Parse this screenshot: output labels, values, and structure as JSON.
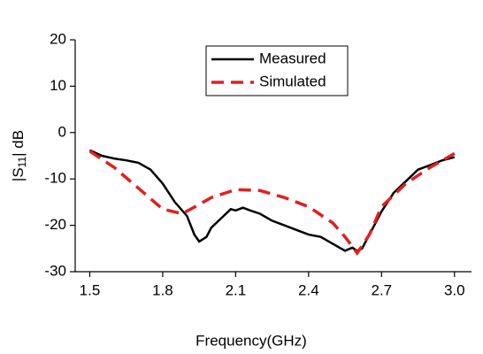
{
  "chart_data": {
    "type": "line",
    "xlabel": "Frequency(GHz)",
    "ylabel": [
      "|S",
      "11",
      "| dB"
    ],
    "xlim": [
      1.44,
      3.07
    ],
    "ylim": [
      -30,
      20
    ],
    "xticks": [
      1.5,
      1.8,
      2.1,
      2.4,
      2.7,
      {
        "value": 3,
        "label": "3.0"
      }
    ],
    "yticks": [
      20,
      10,
      0,
      -10,
      -20,
      -30
    ],
    "legend": "top",
    "series": [
      {
        "name": "Measured",
        "color": "#000000",
        "style": "solid",
        "x": [
          1.5,
          1.55,
          1.6,
          1.65,
          1.7,
          1.75,
          1.8,
          1.85,
          1.9,
          1.93,
          1.95,
          1.98,
          2.0,
          2.05,
          2.08,
          2.1,
          2.13,
          2.16,
          2.2,
          2.25,
          2.3,
          2.35,
          2.4,
          2.45,
          2.5,
          2.55,
          2.58,
          2.6,
          2.62,
          2.65,
          2.7,
          2.75,
          2.8,
          2.85,
          2.9,
          2.95,
          3.0
        ],
        "values": [
          -3.8,
          -5,
          -5.6,
          -6,
          -6.5,
          -8,
          -11,
          -15,
          -18,
          -22,
          -23.5,
          -22.5,
          -20.5,
          -18,
          -16.5,
          -16.8,
          -16.2,
          -16.8,
          -17.5,
          -19,
          -20,
          -21,
          -22,
          -22.5,
          -24,
          -25.5,
          -24.8,
          -25.5,
          -25,
          -22,
          -17,
          -13,
          -10.5,
          -8,
          -7,
          -6,
          -5.3
        ]
      },
      {
        "name": "Simulated",
        "color": "#e02020",
        "style": "dashed",
        "x": [
          1.5,
          1.6,
          1.7,
          1.8,
          1.88,
          1.95,
          2.0,
          2.1,
          2.2,
          2.3,
          2.4,
          2.5,
          2.55,
          2.6,
          2.65,
          2.7,
          2.8,
          2.9,
          3.0
        ],
        "values": [
          -4,
          -7.5,
          -12,
          -16.5,
          -17.5,
          -15.5,
          -14,
          -12.3,
          -12.5,
          -14,
          -16,
          -19.5,
          -22.5,
          -26,
          -22,
          -16,
          -11,
          -7.5,
          -4.5
        ]
      }
    ]
  }
}
